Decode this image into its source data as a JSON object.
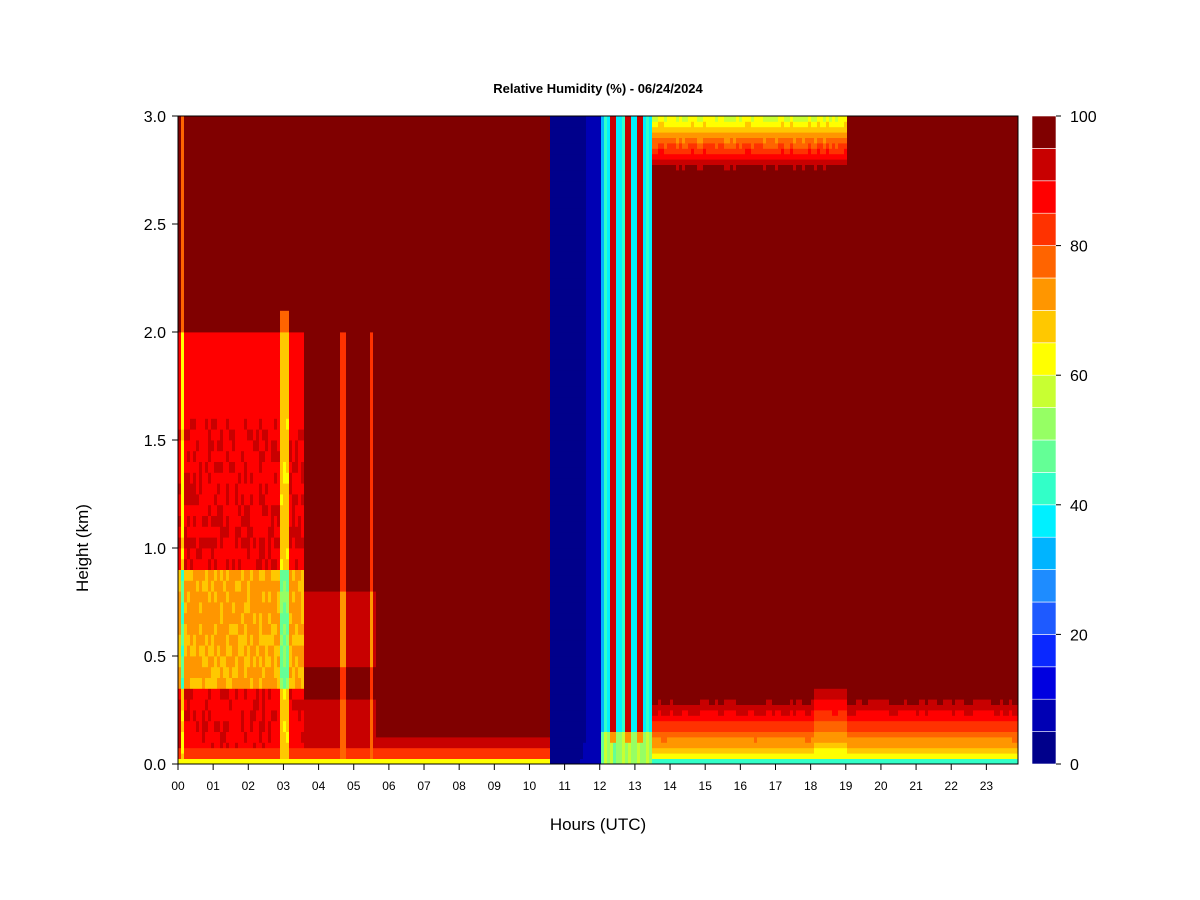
{
  "chart_data": {
    "type": "heatmap",
    "title": "Relative Humidity (%) - 06/24/2024",
    "xlabel": "Hours (UTC)",
    "ylabel": "Height (km)",
    "x_ticks": [
      "00",
      "01",
      "02",
      "03",
      "04",
      "05",
      "06",
      "07",
      "08",
      "09",
      "10",
      "11",
      "12",
      "13",
      "14",
      "15",
      "16",
      "17",
      "18",
      "19",
      "20",
      "21",
      "22",
      "23"
    ],
    "xlim": [
      0,
      23.9
    ],
    "y_ticks": [
      "0.0",
      "0.5",
      "1.0",
      "1.5",
      "2.0",
      "2.5",
      "3.0"
    ],
    "y_tick_values": [
      0,
      0.5,
      1.0,
      1.5,
      2.0,
      2.5,
      3.0
    ],
    "ylim": [
      0,
      3.0
    ],
    "colorbar": {
      "range": [
        0,
        100
      ],
      "step": 5,
      "labels": [
        "0",
        "20",
        "40",
        "60",
        "80",
        "100"
      ],
      "label_values": [
        0,
        20,
        40,
        60,
        80,
        100
      ],
      "colors": [
        "#00008b",
        "#0000b4",
        "#0000e0",
        "#0a28ff",
        "#1e5aff",
        "#1e8cff",
        "#00b4ff",
        "#00f0ff",
        "#32ffc8",
        "#64ff96",
        "#96ff64",
        "#c8ff32",
        "#ffff00",
        "#ffc800",
        "#ff9600",
        "#ff6400",
        "#ff3200",
        "#ff0000",
        "#c80000",
        "#800000"
      ]
    },
    "features": {
      "dry_layer_hours": [
        10.6,
        13.5
      ],
      "moist_background_rh": 100,
      "surface_layer_top_km_after_13h": 0.32,
      "upper_dry_layer_hours": [
        13.6,
        19.0
      ],
      "upper_dry_layer_bottom_km": 2.75
    }
  }
}
